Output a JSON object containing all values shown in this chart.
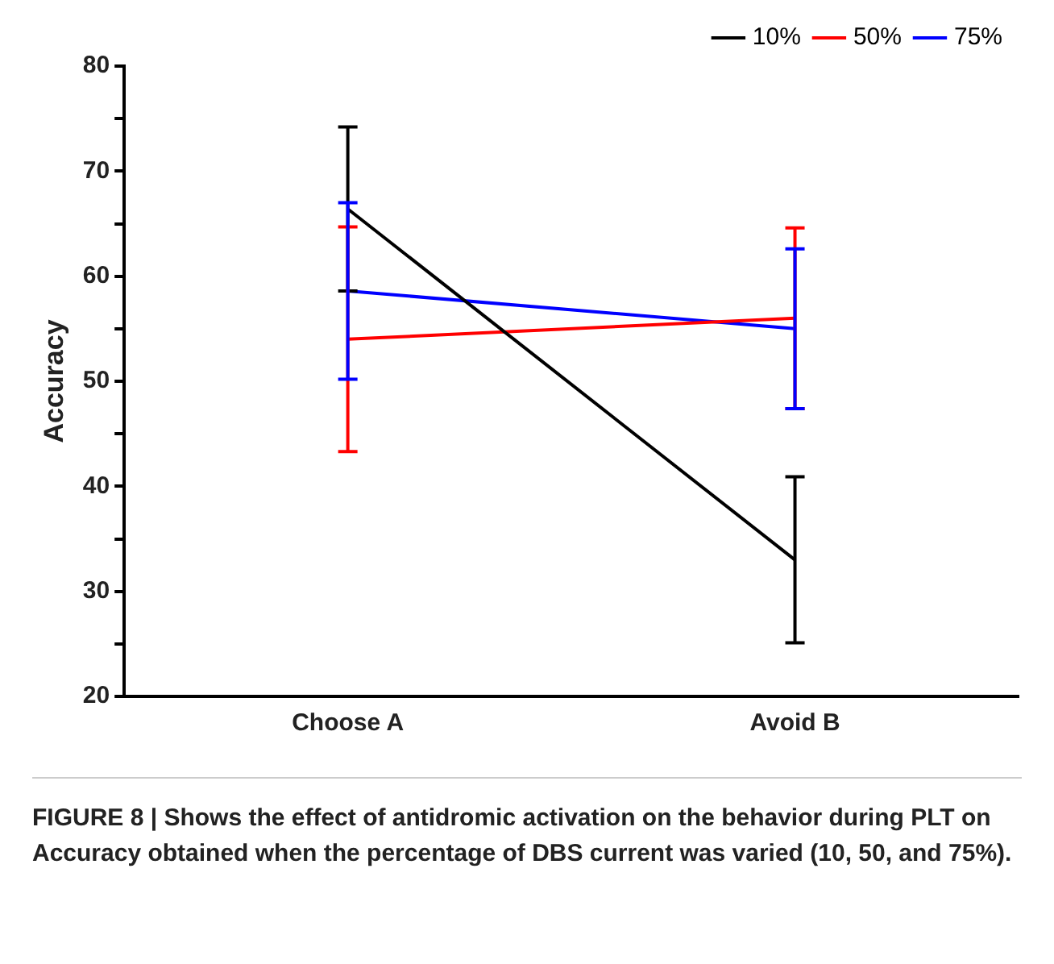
{
  "chart_data": {
    "type": "line",
    "ylabel": "Accuracy",
    "categories": [
      "Choose A",
      "Avoid B"
    ],
    "series": [
      {
        "name": "10%",
        "color": "#000000",
        "values": [
          66.4,
          33.0
        ],
        "errors": [
          7.8,
          7.9
        ]
      },
      {
        "name": "50%",
        "color": "#ff0000",
        "values": [
          54.0,
          56.0
        ],
        "errors": [
          10.7,
          8.6
        ]
      },
      {
        "name": "75%",
        "color": "#0000ff",
        "values": [
          58.6,
          55.0
        ],
        "errors": [
          8.4,
          7.6
        ]
      }
    ],
    "ylim": [
      20,
      80
    ],
    "yticks": [
      20,
      {
        "value": 25,
        "label": null
      },
      30,
      {
        "value": 35,
        "label": null
      },
      40,
      {
        "value": 45,
        "label": null
      },
      50,
      {
        "value": 55,
        "label": null
      },
      60,
      {
        "value": 65,
        "label": null
      },
      70,
      {
        "value": 75,
        "label": null
      },
      80
    ],
    "grid": false,
    "legend": "top right",
    "marker": "none",
    "line_style": "solid",
    "annotations": [
      "FIGURE 8 | Shows the effect of antidromic activation on the behavior during PLT on Accuracy obtained when the percentage of DBS current was varied (10, 50, and 75%)."
    ]
  }
}
